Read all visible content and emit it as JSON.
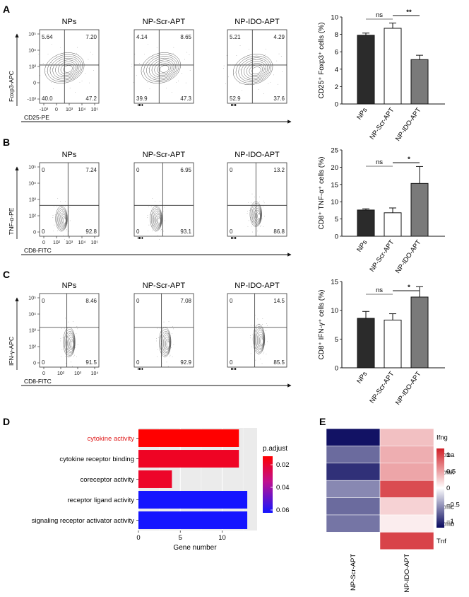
{
  "figure": {
    "panels": [
      "A",
      "B",
      "C",
      "D",
      "E"
    ],
    "flow_rows": [
      {
        "panel": "A",
        "samples": [
          "NPs",
          "NP-Scr-APT",
          "NP-IDO-APT"
        ],
        "x_axis_label": "CD25-PE",
        "y_axis_label": "Foxp3-APC",
        "x_ticks": [
          "-10³",
          "0",
          "10³",
          "10⁴",
          "10⁵"
        ],
        "y_ticks": [
          "10⁵",
          "10⁴",
          "10³",
          "0",
          "-10³"
        ],
        "quadrants": [
          {
            "tl": "5.64",
            "tr": "7.20",
            "bl": "40.0",
            "br": "47.2"
          },
          {
            "tl": "4.14",
            "tr": "8.65",
            "bl": "39.9",
            "br": "47.3"
          },
          {
            "tl": "5.21",
            "tr": "4.29",
            "bl": "52.9",
            "br": "37.6"
          }
        ]
      },
      {
        "panel": "B",
        "samples": [
          "NPs",
          "NP-Scr-APT",
          "NP-IDO-APT"
        ],
        "x_axis_label": "CD8-FITC",
        "y_axis_label": "TNF-α-PE",
        "x_ticks": [
          "0",
          "10²",
          "10³",
          "10⁴",
          "10⁵"
        ],
        "y_ticks": [
          "10⁵",
          "10⁴",
          "10³",
          "10²",
          "0"
        ],
        "quadrants": [
          {
            "tl": "0",
            "tr": "7.24",
            "bl": "0",
            "br": "92.8"
          },
          {
            "tl": "0",
            "tr": "6.95",
            "bl": "0",
            "br": "93.1"
          },
          {
            "tl": "0",
            "tr": "13.2",
            "bl": "0",
            "br": "86.8"
          }
        ]
      },
      {
        "panel": "C",
        "samples": [
          "NPs",
          "NP-Scr-APT",
          "NP-IDO-APT"
        ],
        "x_axis_label": "CD8-FITC",
        "y_axis_label": "IFN-γ-APC",
        "x_ticks": [
          "0",
          "10²",
          "10³",
          "10⁴"
        ],
        "y_ticks": [
          "10⁵",
          "10⁴",
          "10³",
          "10²",
          "0"
        ],
        "quadrants": [
          {
            "tl": "0",
            "tr": "8.46",
            "bl": "0",
            "br": "91.5"
          },
          {
            "tl": "0",
            "tr": "7.08",
            "bl": "0",
            "br": "92.9"
          },
          {
            "tl": "0",
            "tr": "14.5",
            "bl": "0",
            "br": "85.5"
          }
        ]
      }
    ],
    "colors": {
      "bar_np": "#2b2b2b",
      "bar_scr": "#ffffff",
      "bar_ido": "#7a7a7a",
      "go_high": "#ff0000",
      "go_mid": "#e8104a",
      "go_low": "#1515ff",
      "heat_pos": "#d11f26",
      "heat_neg": "#08085e"
    }
  },
  "chart_data": [
    {
      "type": "bar",
      "panel": "A",
      "categories": [
        "NPs",
        "NP-Scr-APT",
        "NP-IDO-APT"
      ],
      "values": [
        7.9,
        8.7,
        5.1
      ],
      "errors": [
        0.25,
        0.6,
        0.5
      ],
      "ylabel": "CD25⁺ Foxp3⁺ cells (%)",
      "ylim": [
        0,
        10
      ],
      "yticks": [
        0,
        2,
        4,
        6,
        8,
        10
      ],
      "significance": [
        "ns",
        "**"
      ]
    },
    {
      "type": "bar",
      "panel": "B",
      "categories": [
        "NPs",
        "NP-Scr-APT",
        "NP-IDO-APT"
      ],
      "values": [
        7.6,
        6.8,
        15.3
      ],
      "errors": [
        0.35,
        1.4,
        4.9
      ],
      "ylabel": "CD8⁺ TNF-α⁺ cells (%)",
      "ylim": [
        0,
        25
      ],
      "yticks": [
        0,
        5,
        10,
        15,
        20,
        25
      ],
      "significance": [
        "ns",
        "*"
      ]
    },
    {
      "type": "bar",
      "panel": "C",
      "categories": [
        "NPs",
        "NP-Scr-APT",
        "NP-IDO-APT"
      ],
      "values": [
        8.6,
        8.3,
        12.3
      ],
      "errors": [
        1.2,
        1.1,
        1.8
      ],
      "ylabel": "CD8⁺ IFN-γ⁺ cells (%)",
      "ylim": [
        0,
        15
      ],
      "yticks": [
        0,
        5,
        10,
        15
      ],
      "significance": [
        "ns",
        "*"
      ]
    },
    {
      "type": "bar",
      "panel": "D",
      "orientation": "horizontal",
      "categories": [
        "cytokine activity",
        "cytokine receptor binding",
        "coreceptor activity",
        "receptor ligand activity",
        "signaling receptor activator activity"
      ],
      "values": [
        12,
        12,
        4,
        13,
        13
      ],
      "p_adjust": [
        0.005,
        0.012,
        0.013,
        0.06,
        0.06
      ],
      "highlight": "cytokine activity",
      "xlabel": "Gene number",
      "xlim": [
        0,
        13.5
      ],
      "xticks": [
        0,
        5,
        10
      ],
      "legend_title": "p.adjust",
      "legend_ticks": [
        "0.02",
        "0.04",
        "0.06"
      ]
    },
    {
      "type": "heatmap",
      "panel": "E",
      "rows": [
        "Ifng",
        "Gzma",
        "Gzmk",
        "Il2",
        "Gzmc",
        "Gzmb",
        "Tnf"
      ],
      "columns": [
        "NP-Scr-APT",
        "NP-IDO-APT"
      ],
      "values": [
        [
          -1.2,
          0.35
        ],
        [
          -0.75,
          0.45
        ],
        [
          -1.05,
          0.5
        ],
        [
          -0.6,
          1.0
        ],
        [
          -0.75,
          0.25
        ],
        [
          -0.7,
          0.1
        ],
        [
          0.0,
          1.05
        ]
      ],
      "scale_ticks": [
        "1",
        "0.5",
        "0",
        "−0.5",
        "−1"
      ],
      "range": [
        -1.25,
        1.25
      ]
    }
  ]
}
